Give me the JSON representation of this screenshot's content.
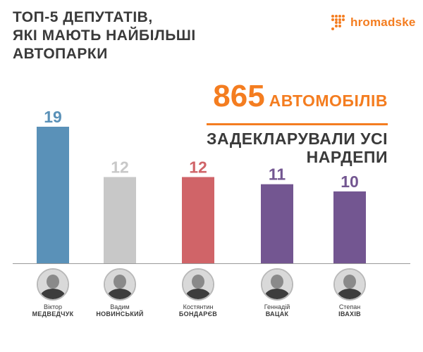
{
  "title": {
    "line1": "ТОП-5 ДЕПУТАТІВ,",
    "line2": "ЯКІ МАЮТЬ НАЙБІЛЬШІ",
    "line3": "АВТОПАРКИ"
  },
  "logo": {
    "text": "hromadske",
    "icon": "dot-grid-logo-icon",
    "color": "#f47d20"
  },
  "headline": {
    "number": "865",
    "unit": "АВТОМОБІЛІВ",
    "sub_line1": "ЗАДЕКЛАРУВАЛИ УСІ",
    "sub_line2": "НАРДЕПИ"
  },
  "chart_data": {
    "type": "bar",
    "categories": [
      "Віктор Медведчук",
      "Вадим Новинський",
      "Костянтин Бондарєв",
      "Геннадій Вацак",
      "Степан Івахів"
    ],
    "values": [
      19,
      12,
      12,
      11,
      10
    ],
    "colors": [
      "#5a91b8",
      "#c8c8c8",
      "#d06468",
      "#735691",
      "#735691"
    ],
    "ylim": [
      0,
      19
    ],
    "grid": false,
    "legend": "none"
  },
  "people": [
    {
      "first": "Віктор",
      "last": "МЕДВЕДЧУК",
      "icon": "person-avatar-icon"
    },
    {
      "first": "Вадим",
      "last": "НОВИНСЬКИЙ",
      "icon": "person-avatar-icon"
    },
    {
      "first": "Костянтин",
      "last": "БОНДАРЄВ",
      "icon": "person-avatar-icon"
    },
    {
      "first": "Геннадій",
      "last": "ВАЦАК",
      "icon": "person-avatar-icon"
    },
    {
      "first": "Степан",
      "last": "ІВАХІВ",
      "icon": "person-avatar-icon"
    }
  ],
  "colors": {
    "accent": "#f47d20",
    "text": "#3a3a3a"
  }
}
